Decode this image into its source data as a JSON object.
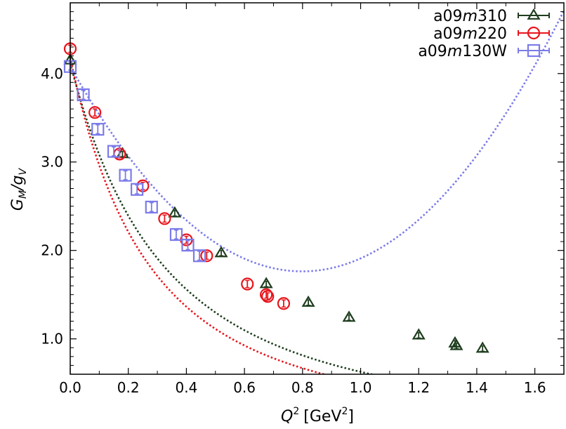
{
  "chart_data": {
    "type": "scatter",
    "xlabel_base": "Q",
    "xlabel_sup": "2",
    "xlabel_unit_open": "[GeV",
    "xlabel_unit_sup": "2",
    "xlabel_unit_close": "]",
    "ylabel_main1": "G",
    "ylabel_sub1": "M",
    "ylabel_slash": "/g",
    "ylabel_sub2": "V",
    "xlim": [
      0.0,
      1.7
    ],
    "ylim": [
      0.6,
      4.8
    ],
    "x_ticks": [
      {
        "value": 0.0,
        "label": "0.0"
      },
      {
        "value": 0.2,
        "label": "0.2"
      },
      {
        "value": 0.4,
        "label": "0.4"
      },
      {
        "value": 0.6,
        "label": "0.6"
      },
      {
        "value": 0.8,
        "label": "0.8"
      },
      {
        "value": 1.0,
        "label": "1.0"
      },
      {
        "value": 1.2,
        "label": "1.2"
      },
      {
        "value": 1.4,
        "label": "1.4"
      },
      {
        "value": 1.6,
        "label": "1.6"
      }
    ],
    "y_ticks": [
      {
        "value": 1.0,
        "label": "1.0"
      },
      {
        "value": 2.0,
        "label": "2.0"
      },
      {
        "value": 3.0,
        "label": "3.0"
      },
      {
        "value": 4.0,
        "label": "4.0"
      }
    ],
    "legend_position": "top-right",
    "grid": false,
    "series": [
      {
        "name": "a09m310",
        "name_parts": {
          "a": "a09",
          "m": "m",
          "b": "310"
        },
        "marker": "triangle",
        "color": "#1f3d1f",
        "points": [
          {
            "x": 0.0,
            "y": 4.15,
            "err": 0.03
          },
          {
            "x": 0.18,
            "y": 3.09,
            "err": 0.03
          },
          {
            "x": 0.36,
            "y": 2.42,
            "err": 0.03
          },
          {
            "x": 0.52,
            "y": 1.97,
            "err": 0.03
          },
          {
            "x": 0.675,
            "y": 1.62,
            "err": 0.03
          },
          {
            "x": 0.82,
            "y": 1.41,
            "err": 0.03
          },
          {
            "x": 0.96,
            "y": 1.24,
            "err": 0.03
          },
          {
            "x": 1.2,
            "y": 1.04,
            "err": 0.03
          },
          {
            "x": 1.325,
            "y": 0.95,
            "err": 0.03
          },
          {
            "x": 1.33,
            "y": 0.92,
            "err": 0.03
          },
          {
            "x": 1.42,
            "y": 0.89,
            "err": 0.03
          }
        ],
        "fit": {
          "type": "dipole",
          "g0": 4.12,
          "M": 0.8
        }
      },
      {
        "name": "a09m220",
        "name_parts": {
          "a": "a09",
          "m": "m",
          "b": "220"
        },
        "marker": "circle",
        "color": "#e8141c",
        "points": [
          {
            "x": 0.0,
            "y": 4.28,
            "err": 0.04
          },
          {
            "x": 0.085,
            "y": 3.56,
            "err": 0.04
          },
          {
            "x": 0.17,
            "y": 3.09,
            "err": 0.04
          },
          {
            "x": 0.25,
            "y": 2.73,
            "err": 0.04
          },
          {
            "x": 0.325,
            "y": 2.36,
            "err": 0.04
          },
          {
            "x": 0.4,
            "y": 2.12,
            "err": 0.04
          },
          {
            "x": 0.47,
            "y": 1.94,
            "err": 0.04
          },
          {
            "x": 0.61,
            "y": 1.62,
            "err": 0.04
          },
          {
            "x": 0.675,
            "y": 1.5,
            "err": 0.04
          },
          {
            "x": 0.68,
            "y": 1.48,
            "err": 0.04
          },
          {
            "x": 0.735,
            "y": 1.4,
            "err": 0.04
          }
        ],
        "fit": {
          "type": "dipole",
          "g0": 4.18,
          "M": 0.73
        }
      },
      {
        "name": "a09m130W",
        "name_parts": {
          "a": "a09",
          "m": "m",
          "b": "130W"
        },
        "marker": "square",
        "color": "#7b7bea",
        "points": [
          {
            "x": 0.0,
            "y": 4.08,
            "err": 0.04
          },
          {
            "x": 0.045,
            "y": 3.76,
            "err": 0.05
          },
          {
            "x": 0.095,
            "y": 3.37,
            "err": 0.05
          },
          {
            "x": 0.15,
            "y": 3.12,
            "err": 0.05
          },
          {
            "x": 0.19,
            "y": 2.85,
            "err": 0.05
          },
          {
            "x": 0.23,
            "y": 2.69,
            "err": 0.05
          },
          {
            "x": 0.28,
            "y": 2.49,
            "err": 0.05
          },
          {
            "x": 0.365,
            "y": 2.18,
            "err": 0.05
          },
          {
            "x": 0.405,
            "y": 2.06,
            "err": 0.05
          },
          {
            "x": 0.445,
            "y": 1.94,
            "err": 0.05
          }
        ],
        "fit": {
          "type": "zexp",
          "g0": 4.08,
          "a1": -5.8,
          "a2": 3.63
        }
      }
    ]
  }
}
